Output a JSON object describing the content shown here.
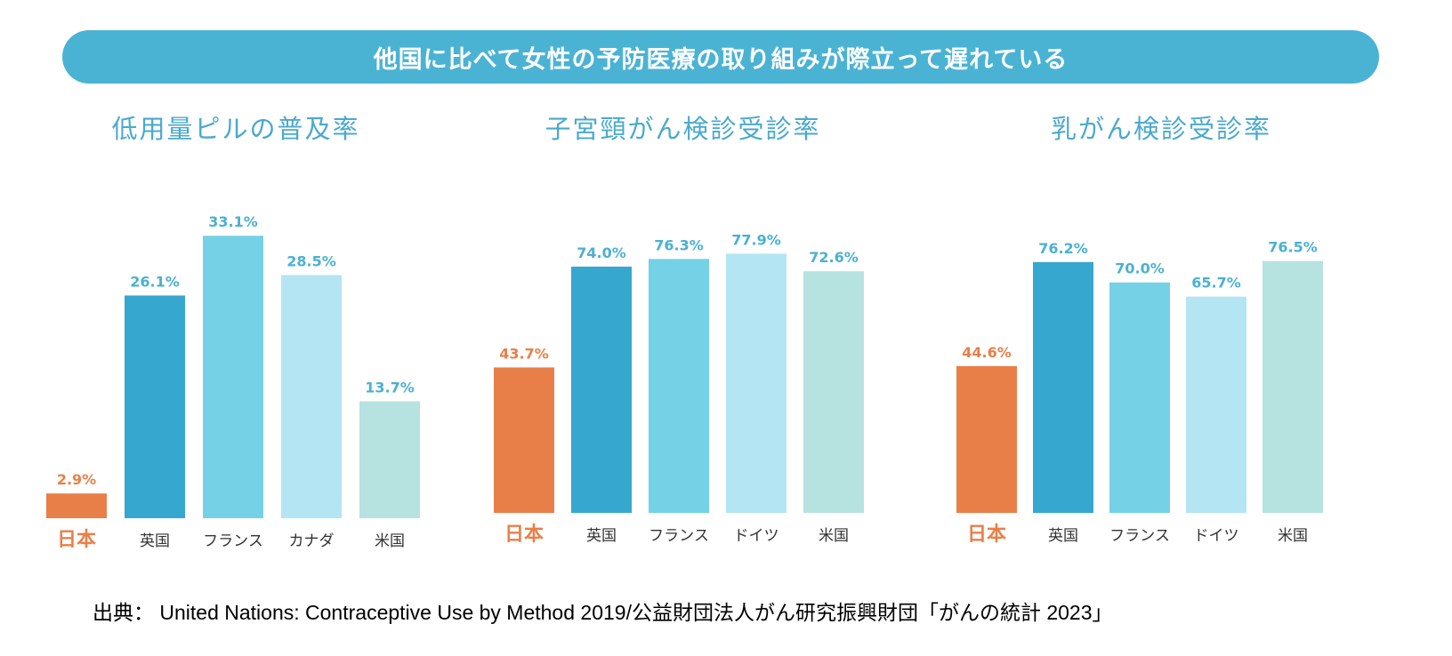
{
  "banner": {
    "title": "他国に比べて女性の予防医療の取り組みが際立って遅れている"
  },
  "source": "出典： United Nations: Contraceptive Use by Method 2019/公益財団法人がん研究振興財団「がんの統計 2023」",
  "colors": {
    "banner": "#4ab3d3",
    "title": "#4aa9cc",
    "japan": "#e97f48",
    "bar1": "#36a7cf",
    "bar2": "#74d1e6",
    "bar3": "#b4e5f2",
    "bar4": "#b6e2e0",
    "value_label": "#4bb0d2",
    "category_label": "#333333"
  },
  "chart_data": [
    {
      "type": "bar",
      "title": "低用量ピルの普及率",
      "categories": [
        "日本",
        "英国",
        "フランス",
        "カナダ",
        "米国"
      ],
      "values": [
        2.9,
        26.1,
        33.1,
        28.5,
        13.7
      ],
      "labels": [
        "2.9%",
        "26.1%",
        "33.1%",
        "28.5%",
        "13.7%"
      ],
      "ylim": [
        0,
        35
      ]
    },
    {
      "type": "bar",
      "title": "子宮頸がん検診受診率",
      "categories": [
        "日本",
        "英国",
        "フランス",
        "ドイツ",
        "米国"
      ],
      "values": [
        43.7,
        74.0,
        76.3,
        77.9,
        72.6
      ],
      "labels": [
        "43.7%",
        "74.0%",
        "76.3%",
        "77.9%",
        "72.6%"
      ],
      "ylim": [
        0,
        82
      ]
    },
    {
      "type": "bar",
      "title": "乳がん検診受診率",
      "categories": [
        "日本",
        "英国",
        "フランス",
        "ドイツ",
        "米国"
      ],
      "values": [
        44.6,
        76.2,
        70.0,
        65.7,
        76.5
      ],
      "labels": [
        "44.6%",
        "76.2%",
        "70.0%",
        "65.7%",
        "76.5%"
      ],
      "ylim": [
        0,
        81
      ]
    }
  ]
}
